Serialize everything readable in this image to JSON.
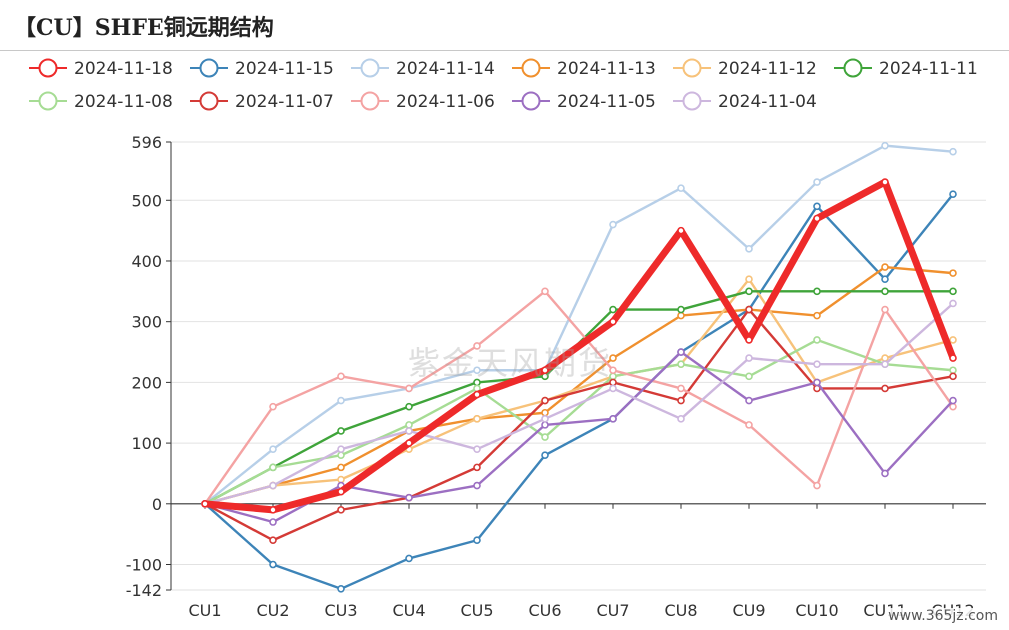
{
  "title": "【CU】SHFE铜远期结构",
  "watermark": "紫金天风期货",
  "site_mark": "www.365jz.com",
  "chart_data": {
    "type": "line",
    "title": "【CU】SHFE铜远期结构",
    "categories": [
      "CU1",
      "CU2",
      "CU3",
      "CU4",
      "CU5",
      "CU6",
      "CU7",
      "CU8",
      "CU9",
      "CU10",
      "CU11",
      "CU12"
    ],
    "ylim": [
      -142,
      596
    ],
    "yticks": [
      596,
      500,
      400,
      300,
      200,
      100,
      0,
      -100,
      -142
    ],
    "grid": true,
    "legend_position": "top-left",
    "series": [
      {
        "name": "2024-11-18",
        "color": "#ee2a2a",
        "emphasis": true,
        "values": [
          0,
          -10,
          20,
          100,
          180,
          220,
          300,
          450,
          270,
          470,
          530,
          240
        ]
      },
      {
        "name": "2024-11-15",
        "color": "#3d84b8",
        "values": [
          0,
          -100,
          -140,
          -90,
          -60,
          80,
          140,
          250,
          320,
          490,
          370,
          510
        ]
      },
      {
        "name": "2024-11-14",
        "color": "#b7cfe8",
        "values": [
          0,
          90,
          170,
          190,
          220,
          220,
          460,
          520,
          420,
          530,
          590,
          580
        ]
      },
      {
        "name": "2024-11-13",
        "color": "#f0902e",
        "values": [
          0,
          30,
          60,
          120,
          140,
          150,
          240,
          310,
          320,
          310,
          390,
          380
        ]
      },
      {
        "name": "2024-11-12",
        "color": "#f7c27a",
        "values": [
          0,
          30,
          40,
          90,
          140,
          170,
          210,
          230,
          370,
          200,
          240,
          270
        ]
      },
      {
        "name": "2024-11-11",
        "color": "#3fa43a",
        "values": [
          0,
          60,
          120,
          160,
          200,
          210,
          320,
          320,
          350,
          350,
          350,
          350
        ]
      },
      {
        "name": "2024-11-08",
        "color": "#a6dc94",
        "values": [
          0,
          60,
          80,
          130,
          190,
          110,
          210,
          230,
          210,
          270,
          230,
          220
        ]
      },
      {
        "name": "2024-11-07",
        "color": "#d43a36",
        "values": [
          0,
          -60,
          -10,
          10,
          60,
          170,
          200,
          170,
          320,
          190,
          190,
          210
        ]
      },
      {
        "name": "2024-11-06",
        "color": "#f4a3a3",
        "values": [
          0,
          160,
          210,
          190,
          260,
          350,
          220,
          190,
          130,
          30,
          320,
          160
        ]
      },
      {
        "name": "2024-11-05",
        "color": "#9c6fc2",
        "values": [
          0,
          -30,
          30,
          10,
          30,
          130,
          140,
          250,
          170,
          200,
          50,
          170
        ]
      },
      {
        "name": "2024-11-04",
        "color": "#cdb7de",
        "values": [
          0,
          30,
          90,
          120,
          90,
          140,
          190,
          140,
          240,
          230,
          230,
          330
        ]
      }
    ]
  }
}
